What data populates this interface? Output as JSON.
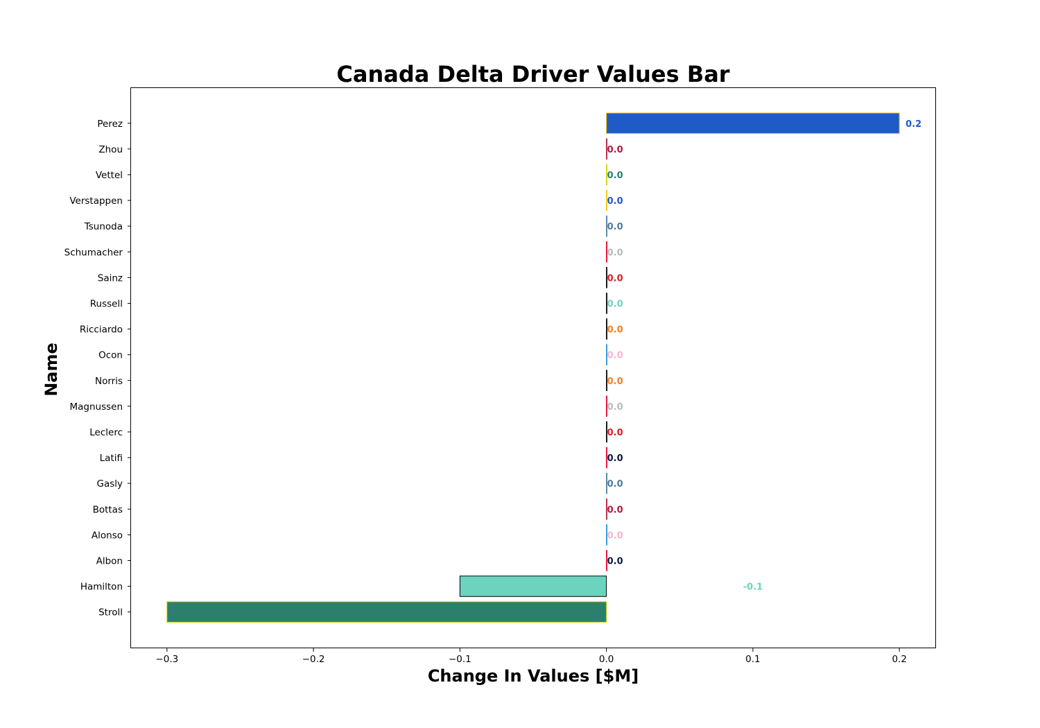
{
  "chart_data": {
    "type": "bar",
    "orientation": "horizontal",
    "title": "Canada Delta Driver Values Bar",
    "xlabel": "Change In Values [$M]",
    "ylabel": "Name",
    "xlim": [
      -0.325,
      0.225
    ],
    "xticks": [
      -0.3,
      -0.2,
      -0.1,
      0.0,
      0.1,
      0.2
    ],
    "xtick_labels": [
      "−0.3",
      "−0.2",
      "−0.1",
      "0.0",
      "0.1",
      "0.2"
    ],
    "grid": false,
    "bars": [
      {
        "name": "Perez",
        "value": 0.2,
        "label": "0.2",
        "fill": "#1f5bc6",
        "edge": "#f5c400",
        "label_color": "#1f5bc6"
      },
      {
        "name": "Zhou",
        "value": 0.0,
        "label": "0.0",
        "fill": "#b5193e",
        "edge": "#b5193e",
        "label_color": "#b5193e"
      },
      {
        "name": "Vettel",
        "value": 0.0,
        "label": "0.0",
        "fill": "#2d7f6d",
        "edge": "#c8d400",
        "label_color": "#2d7f6d"
      },
      {
        "name": "Verstappen",
        "value": 0.0,
        "label": "0.0",
        "fill": "#1f5bc6",
        "edge": "#f5c400",
        "label_color": "#1f5bc6"
      },
      {
        "name": "Tsunoda",
        "value": 0.0,
        "label": "0.0",
        "fill": "#4e7c9b",
        "edge": "#4e7c9b",
        "label_color": "#4e7c9b"
      },
      {
        "name": "Schumacher",
        "value": 0.0,
        "label": "0.0",
        "fill": "#b6babd",
        "edge": "#e8002d",
        "label_color": "#b6babd"
      },
      {
        "name": "Sainz",
        "value": 0.0,
        "label": "0.0",
        "fill": "#dc1f26",
        "edge": "#000000",
        "label_color": "#dc1f26"
      },
      {
        "name": "Russell",
        "value": 0.0,
        "label": "0.0",
        "fill": "#6cd3bf",
        "edge": "#000000",
        "label_color": "#6cd3bf"
      },
      {
        "name": "Ricciardo",
        "value": 0.0,
        "label": "0.0",
        "fill": "#f58020",
        "edge": "#000000",
        "label_color": "#f58020"
      },
      {
        "name": "Ocon",
        "value": 0.0,
        "label": "0.0",
        "fill": "#f7b6cf",
        "edge": "#2293d1",
        "label_color": "#f7b6cf"
      },
      {
        "name": "Norris",
        "value": 0.0,
        "label": "0.0",
        "fill": "#f58020",
        "edge": "#000000",
        "label_color": "#f58020"
      },
      {
        "name": "Magnussen",
        "value": 0.0,
        "label": "0.0",
        "fill": "#b6babd",
        "edge": "#e8002d",
        "label_color": "#b6babd"
      },
      {
        "name": "Leclerc",
        "value": 0.0,
        "label": "0.0",
        "fill": "#dc1f26",
        "edge": "#000000",
        "label_color": "#dc1f26"
      },
      {
        "name": "Latifi",
        "value": 0.0,
        "label": "0.0",
        "fill": "#0b1b3f",
        "edge": "#e8002d",
        "label_color": "#0b1b3f"
      },
      {
        "name": "Gasly",
        "value": 0.0,
        "label": "0.0",
        "fill": "#4e7c9b",
        "edge": "#4e7c9b",
        "label_color": "#4e7c9b"
      },
      {
        "name": "Bottas",
        "value": 0.0,
        "label": "0.0",
        "fill": "#b5193e",
        "edge": "#b5193e",
        "label_color": "#b5193e"
      },
      {
        "name": "Alonso",
        "value": 0.0,
        "label": "0.0",
        "fill": "#f7b6cf",
        "edge": "#2293d1",
        "label_color": "#f7b6cf"
      },
      {
        "name": "Albon",
        "value": 0.0,
        "label": "0.0",
        "fill": "#0b1b3f",
        "edge": "#e8002d",
        "label_color": "#0b1b3f"
      },
      {
        "name": "Hamilton",
        "value": -0.1,
        "label": "-0.1",
        "fill": "#6cd3bf",
        "edge": "#000000",
        "label_color": "#6cd3bf",
        "label_at": 0.1
      },
      {
        "name": "Stroll",
        "value": -0.3,
        "label": "",
        "fill": "#2d7f6d",
        "edge": "#c8d400",
        "label_color": "#2d7f6d"
      }
    ]
  }
}
